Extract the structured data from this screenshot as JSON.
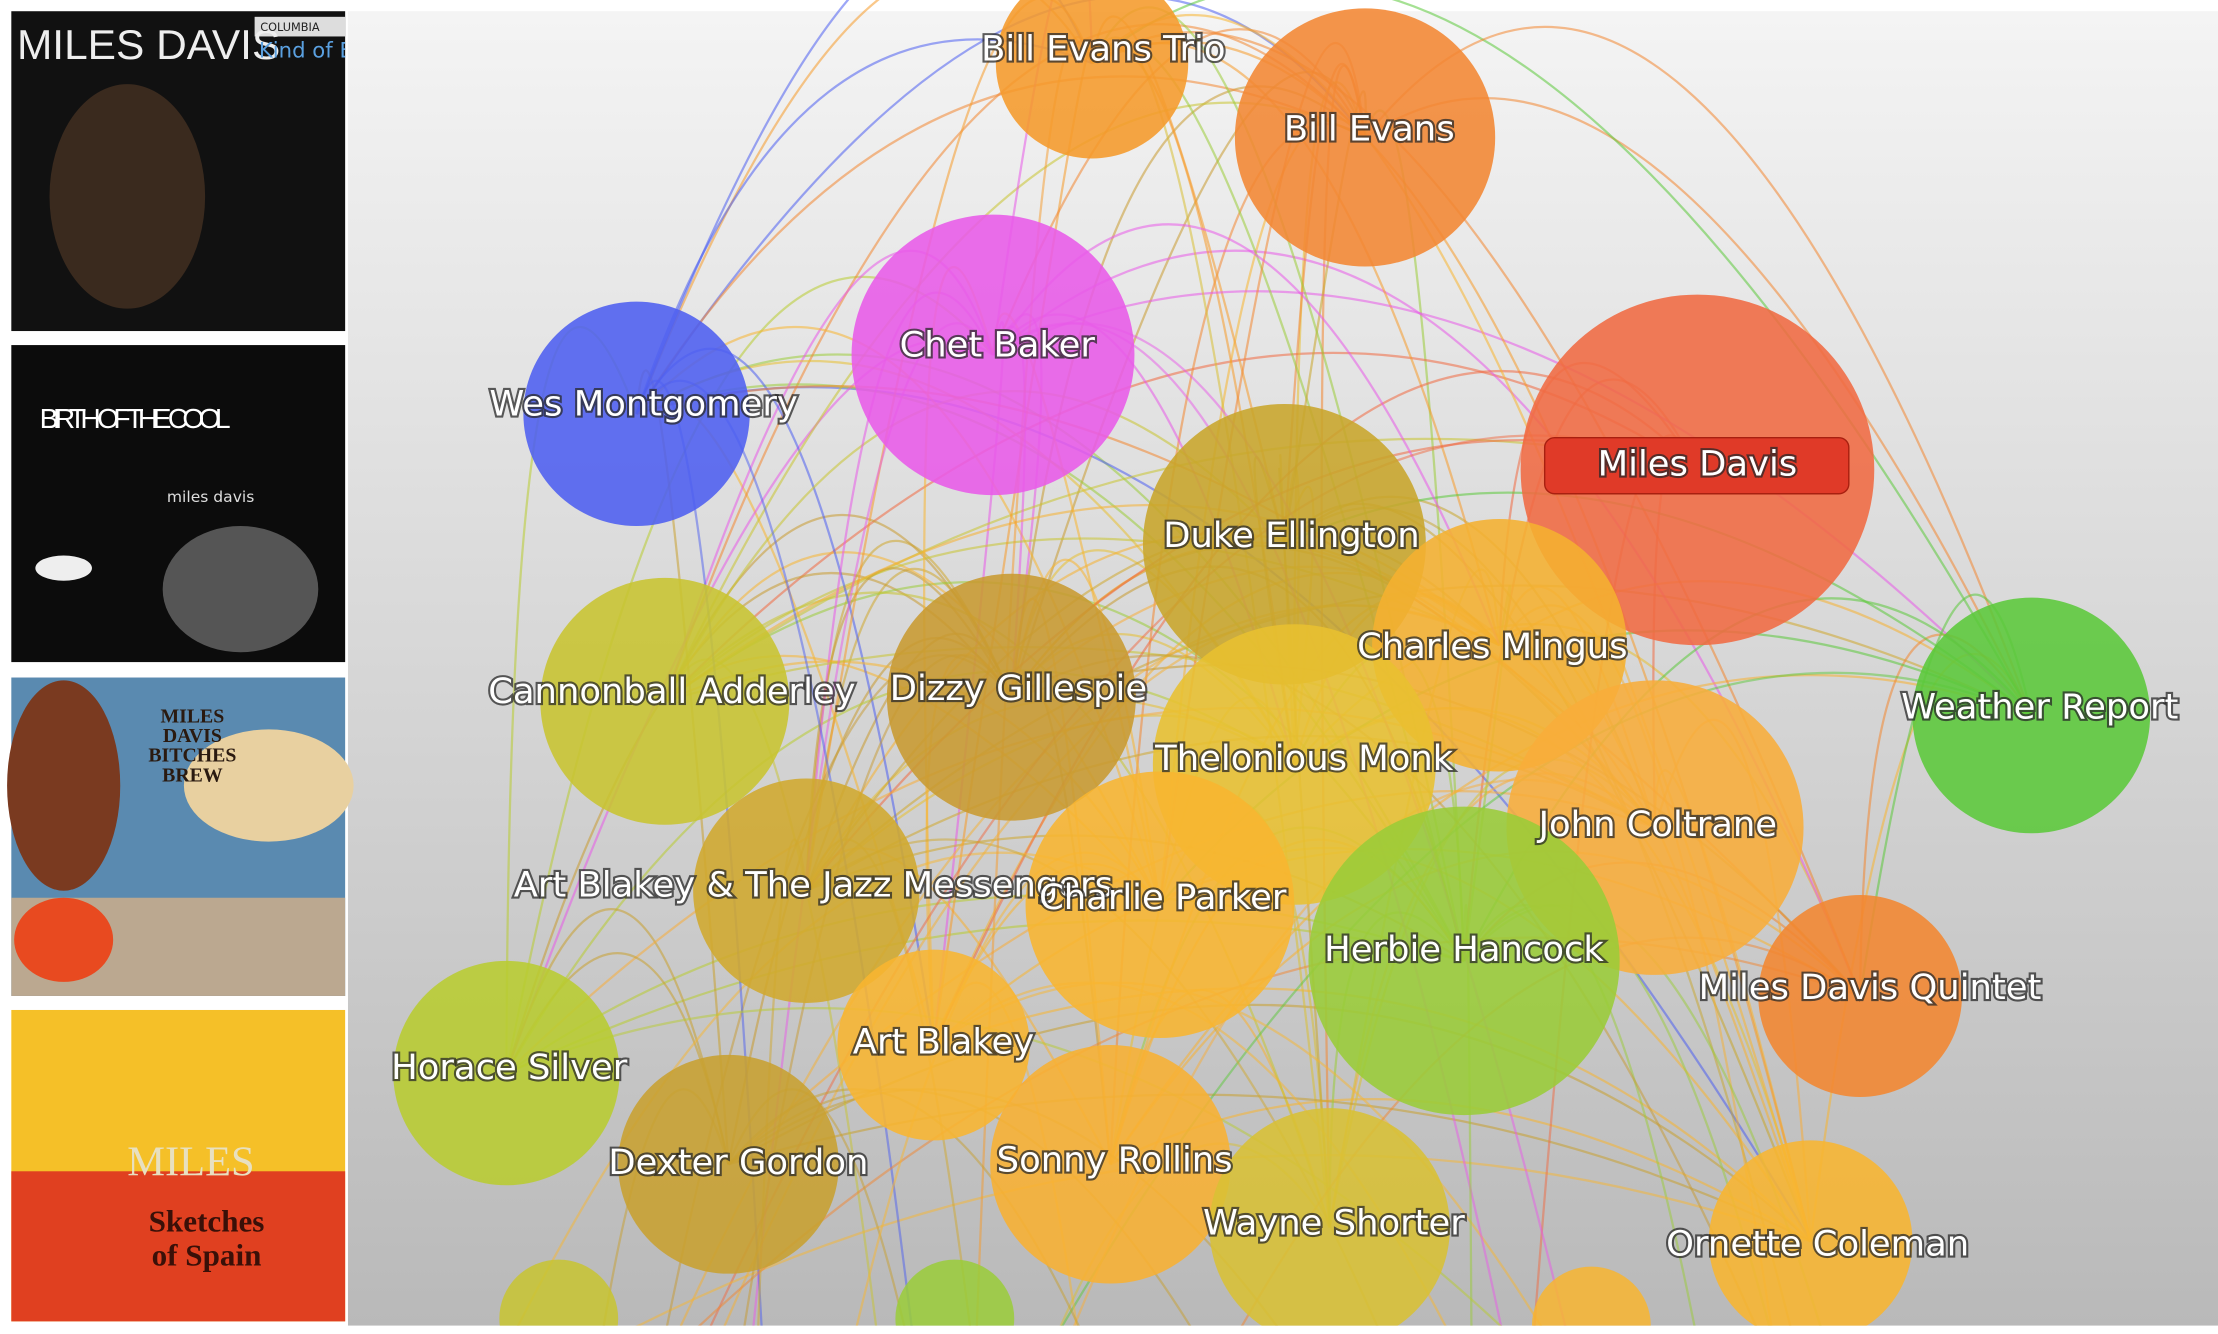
{
  "albums": [
    {
      "artist": "MILES DAVIS",
      "label": "COLUMBIA",
      "title": "Kind of Blue"
    },
    {
      "title": "BIRTH OF THE COOL",
      "artist": "miles davis"
    },
    {
      "title_lines": [
        "MILES",
        "DAVIS",
        "BITCHES",
        "BREW"
      ]
    },
    {
      "artist": "MILES",
      "title_lines": [
        "Sketches",
        "of Spain"
      ]
    }
  ],
  "nodes": [
    {
      "label": "Bill Evans Trio"
    },
    {
      "label": "Bill Evans"
    },
    {
      "label": "Chet Baker"
    },
    {
      "label": "Wes Montgomery"
    },
    {
      "label": "Miles Davis"
    },
    {
      "label": "Duke Ellington"
    },
    {
      "label": "Charles Mingus"
    },
    {
      "label": "Weather Report"
    },
    {
      "label": "Cannonball Adderley"
    },
    {
      "label": "Dizzy Gillespie"
    },
    {
      "label": "Thelonious Monk"
    },
    {
      "label": "John Coltrane"
    },
    {
      "label": "Art Blakey & The Jazz Messengers"
    },
    {
      "label": "Charlie Parker"
    },
    {
      "label": "Herbie Hancock"
    },
    {
      "label": "Miles Davis Quintet"
    },
    {
      "label": "Horace Silver"
    },
    {
      "label": "Art Blakey"
    },
    {
      "label": "Dexter Gordon"
    },
    {
      "label": "Sonny Rollins"
    },
    {
      "label": "Wayne Shorter"
    },
    {
      "label": "Ornette Coleman"
    }
  ]
}
